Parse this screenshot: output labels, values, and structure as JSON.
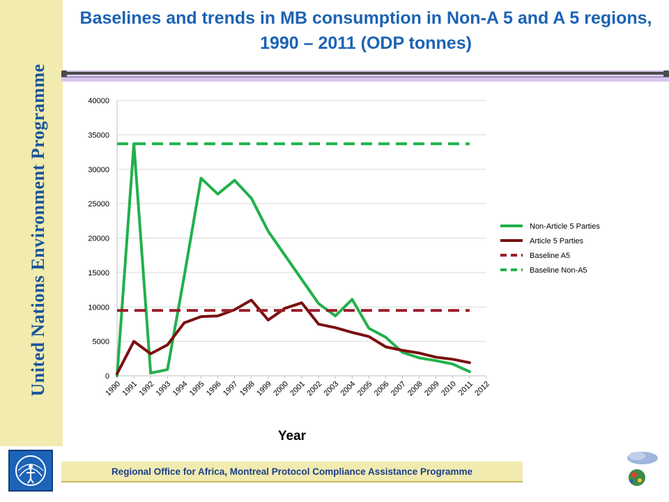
{
  "side_text": "United Nations Environment Programme",
  "title": "Baselines and trends in MB consumption in Non-A 5 and A 5 regions, 1990 – 2011 (ODP tonnes)",
  "footer": "Regional Office for Africa, Montreal Protocol Compliance Assistance Programme",
  "colors": {
    "non_a5": "#22b04c",
    "a5": "#7a1010",
    "baseline_a5": "#9a1c2a",
    "baseline_non_a5": "#1db34a"
  },
  "chart_data": {
    "type": "line",
    "x": [
      "1990",
      "1991",
      "1992",
      "1993",
      "1994",
      "1995",
      "1996",
      "1997",
      "1998",
      "1999",
      "2000",
      "2001",
      "2002",
      "2003",
      "2004",
      "2005",
      "2006",
      "2007",
      "2008",
      "2009",
      "2010",
      "2011",
      "2012"
    ],
    "xlabel": "Year",
    "ylabel": "",
    "ylim": [
      0,
      40000
    ],
    "yticks": [
      "0",
      "5000",
      "10000",
      "15000",
      "20000",
      "25000",
      "30000",
      "35000",
      "40000"
    ],
    "grid": true,
    "legend_position": "right",
    "series": [
      {
        "name": "Non-Article 5 Parties",
        "style": "solid",
        "color": "#22b04c",
        "values": [
          0,
          33700,
          400,
          900,
          14500,
          28700,
          26400,
          28400,
          25800,
          21000,
          17500,
          14000,
          10500,
          8700,
          11100,
          6900,
          5600,
          3400,
          2600,
          2200,
          1700,
          600,
          null
        ]
      },
      {
        "name": "Article 5 Parties",
        "style": "solid",
        "color": "#7a1010",
        "values": [
          300,
          5000,
          3200,
          4500,
          7700,
          8600,
          8700,
          9600,
          11000,
          8100,
          9800,
          10600,
          7500,
          7000,
          6300,
          5700,
          4200,
          3700,
          3300,
          2700,
          2400,
          1900,
          null
        ]
      },
      {
        "name": "Baseline A5",
        "style": "dashed",
        "color": "#9a1c2a",
        "values": [
          9500,
          9500,
          9500,
          9500,
          9500,
          9500,
          9500,
          9500,
          9500,
          9500,
          9500,
          9500,
          9500,
          9500,
          9500,
          9500,
          9500,
          9500,
          9500,
          9500,
          9500,
          9500,
          null
        ]
      },
      {
        "name": "Baseline Non-A5",
        "style": "dashed",
        "color": "#1db34a",
        "values": [
          33700,
          33700,
          33700,
          33700,
          33700,
          33700,
          33700,
          33700,
          33700,
          33700,
          33700,
          33700,
          33700,
          33700,
          33700,
          33700,
          33700,
          33700,
          33700,
          33700,
          33700,
          33700,
          null
        ]
      }
    ]
  }
}
